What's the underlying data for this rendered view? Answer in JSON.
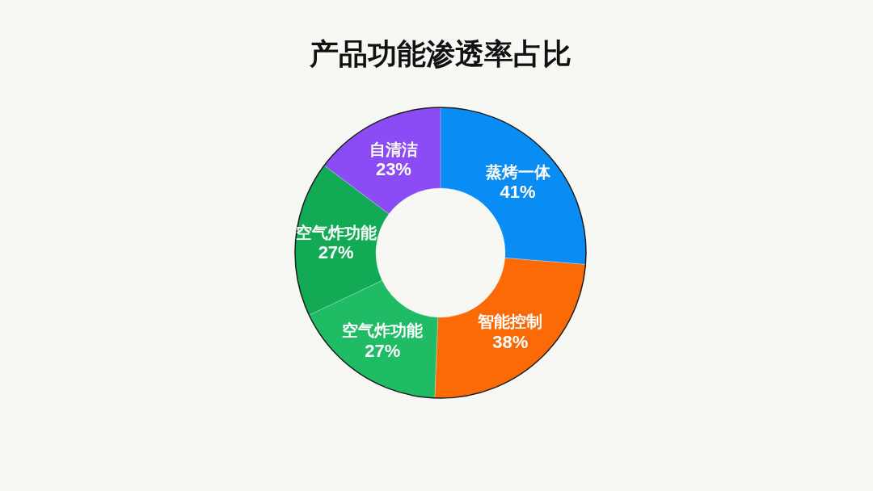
{
  "chart_data": {
    "type": "donut",
    "title": "产品功能渗透率占比",
    "categories": [
      "蒸烤一体",
      "智能控制",
      "空气炸功能",
      "空气炸功能",
      "自清洁"
    ],
    "values": [
      41,
      38,
      27,
      27,
      23
    ],
    "value_labels": [
      "41%",
      "38%",
      "27%",
      "27%",
      "23%"
    ],
    "colors": [
      "#0a8cf5",
      "#fb6a05",
      "#1fbc65",
      "#12aa55",
      "#8b4cf6"
    ]
  }
}
